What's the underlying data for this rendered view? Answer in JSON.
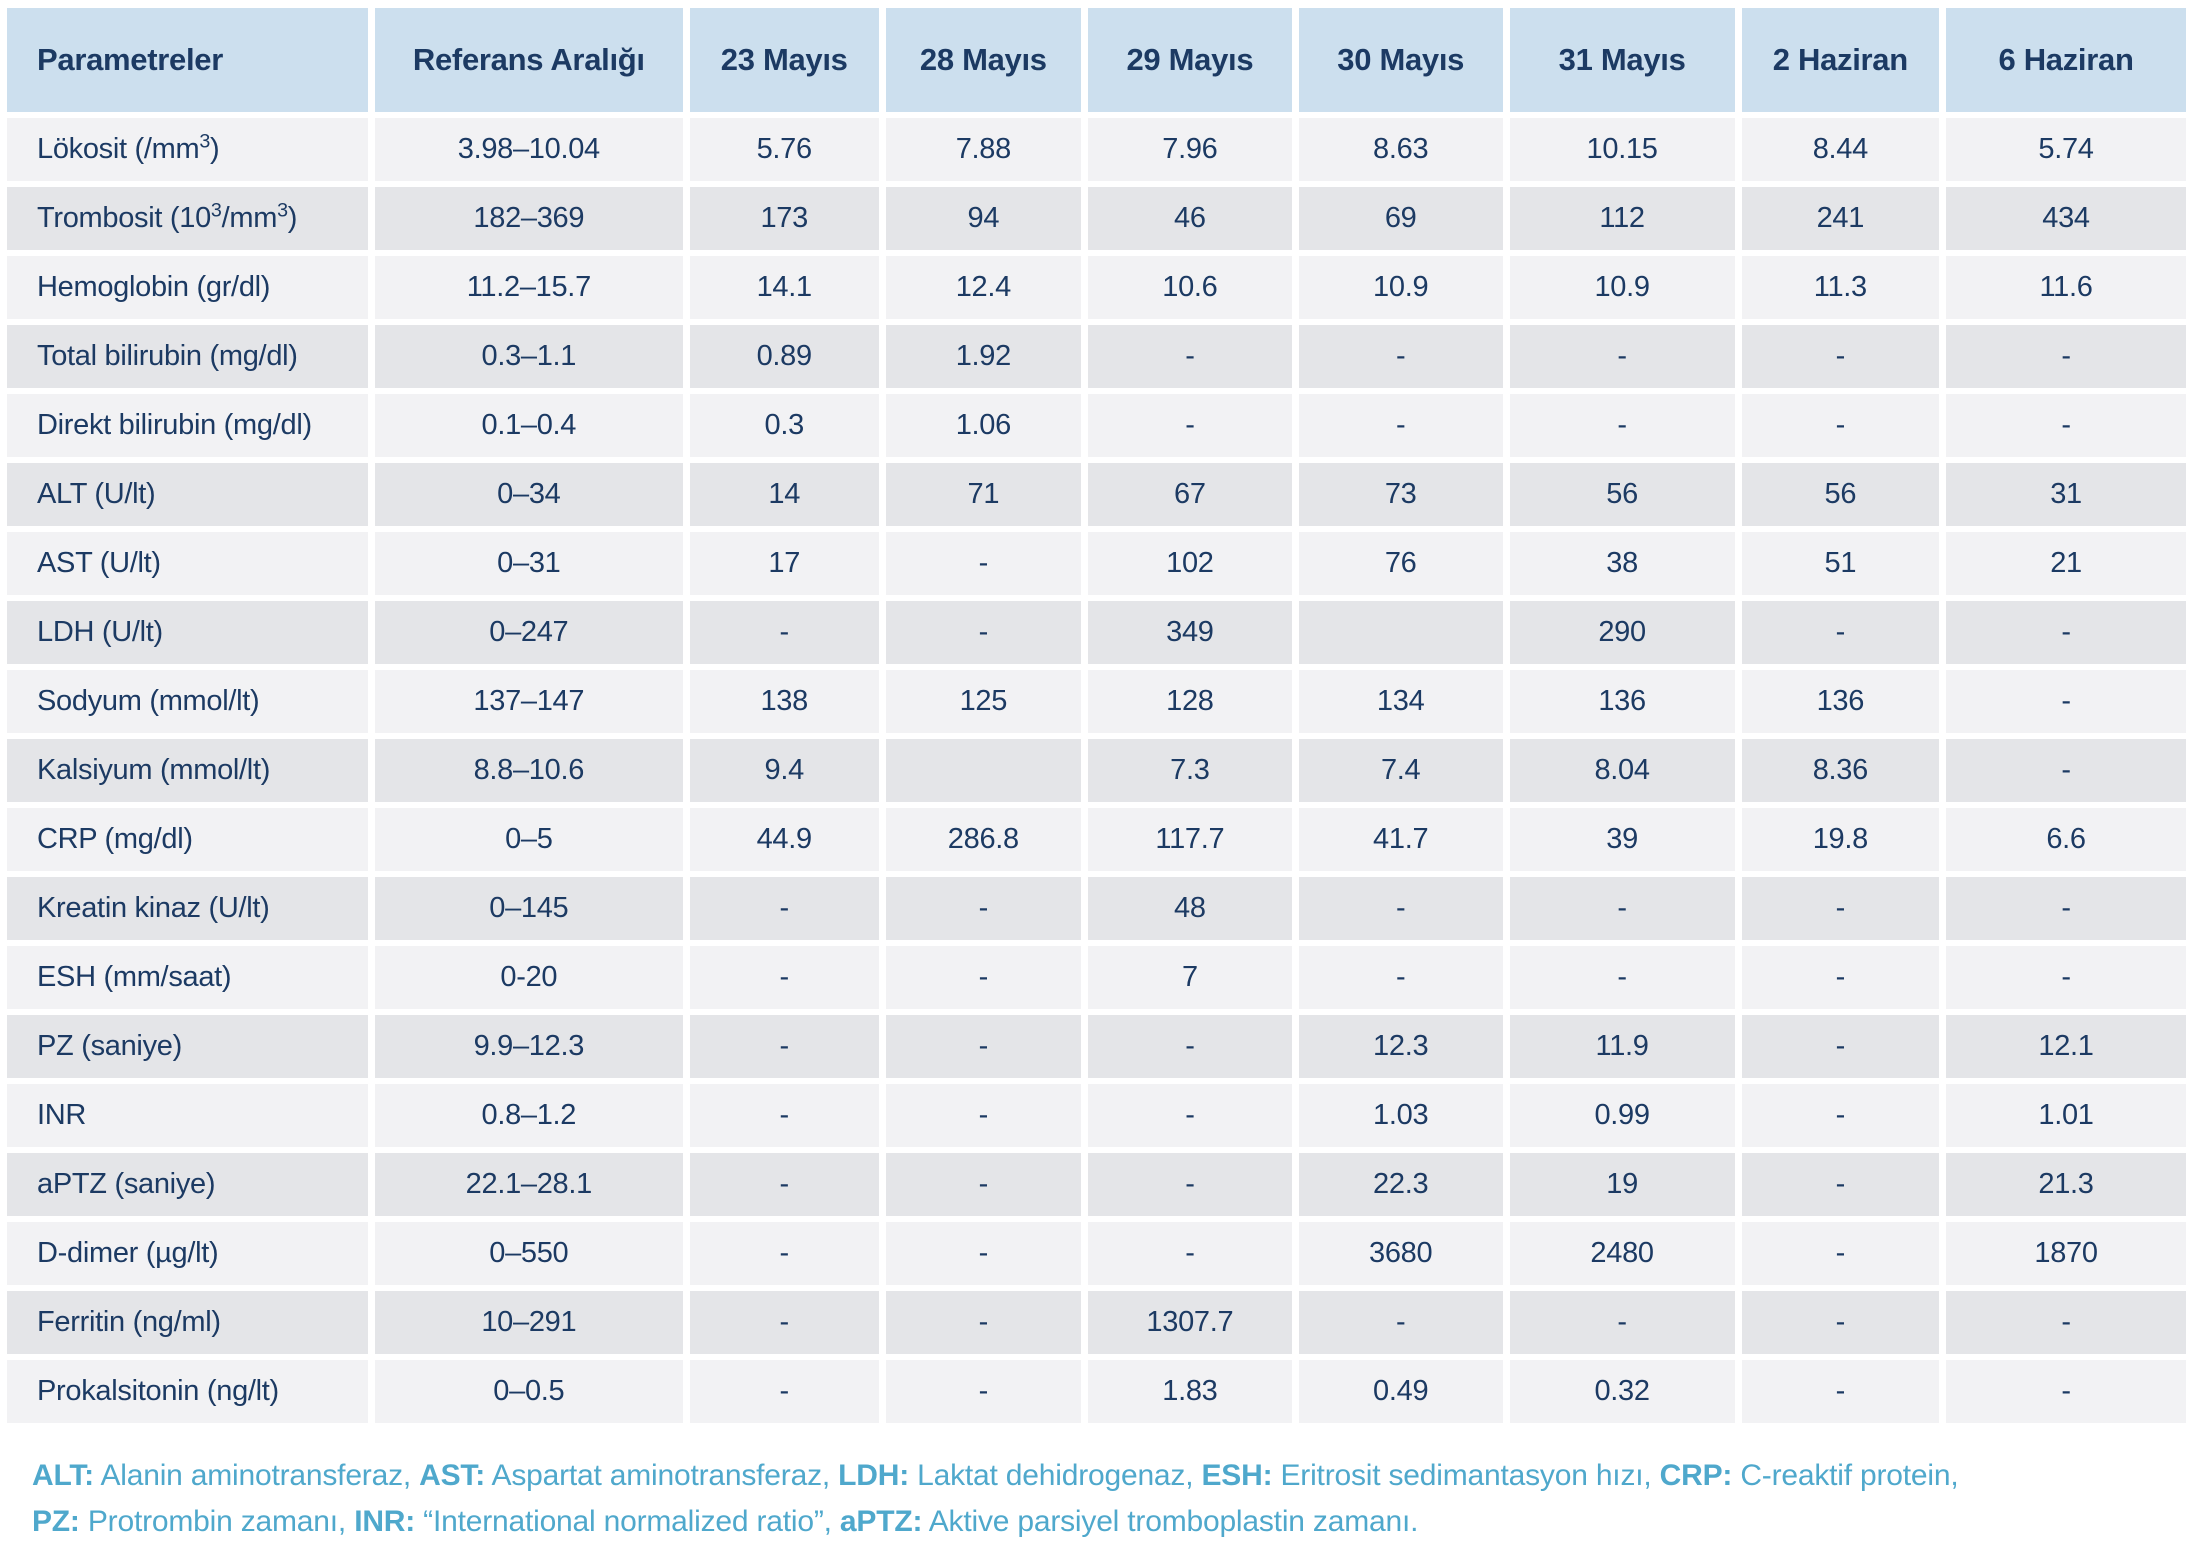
{
  "table": {
    "columns": [
      "Parametreler",
      "Referans Aralığı",
      "23 Mayıs",
      "28 Mayıs",
      "29 Mayıs",
      "30 Mayıs",
      "31 Mayıs",
      "2 Haziran",
      "6 Haziran"
    ],
    "rows": [
      {
        "cells": [
          "Lökosit (/mm³)",
          "3.98–10.04",
          "5.76",
          "7.88",
          "7.96",
          "8.63",
          "10.15",
          "8.44",
          "5.74"
        ]
      },
      {
        "cells": [
          "Trombosit (10³/mm³)",
          "182–369",
          "173",
          "94",
          "46",
          "69",
          "112",
          "241",
          "434"
        ]
      },
      {
        "cells": [
          "Hemoglobin (gr/dl)",
          "11.2–15.7",
          "14.1",
          "12.4",
          "10.6",
          "10.9",
          "10.9",
          "11.3",
          "11.6"
        ]
      },
      {
        "cells": [
          "Total bilirubin (mg/dl)",
          "0.3–1.1",
          "0.89",
          "1.92",
          "-",
          "-",
          "-",
          "-",
          "-"
        ]
      },
      {
        "cells": [
          "Direkt bilirubin (mg/dl)",
          "0.1–0.4",
          "0.3",
          "1.06",
          "-",
          "-",
          "-",
          "-",
          "-"
        ]
      },
      {
        "cells": [
          "ALT (U/lt)",
          "0–34",
          "14",
          "71",
          "67",
          "73",
          "56",
          "56",
          "31"
        ]
      },
      {
        "cells": [
          "AST (U/lt)",
          "0–31",
          "17",
          "-",
          "102",
          "76",
          "38",
          "51",
          "21"
        ]
      },
      {
        "cells": [
          "LDH (U/lt)",
          "0–247",
          "-",
          "-",
          "349",
          "",
          "290",
          "-",
          "-"
        ]
      },
      {
        "cells": [
          "Sodyum (mmol/lt)",
          "137–147",
          "138",
          "125",
          "128",
          "134",
          "136",
          "136",
          "-"
        ]
      },
      {
        "cells": [
          "Kalsiyum (mmol/lt)",
          "8.8–10.6",
          "9.4",
          "",
          "7.3",
          "7.4",
          "8.04",
          "8.36",
          "-"
        ]
      },
      {
        "cells": [
          "CRP (mg/dl)",
          "0–5",
          "44.9",
          "286.8",
          "117.7",
          "41.7",
          "39",
          "19.8",
          "6.6"
        ]
      },
      {
        "cells": [
          "Kreatin kinaz (U/lt)",
          "0–145",
          "-",
          "-",
          "48",
          "-",
          "-",
          "-",
          "-"
        ]
      },
      {
        "cells": [
          "ESH (mm/saat)",
          "0-20",
          "-",
          "-",
          "7",
          "-",
          "-",
          "-",
          "-"
        ]
      },
      {
        "cells": [
          "PZ (saniye)",
          "9.9–12.3",
          "-",
          "-",
          "-",
          "12.3",
          "11.9",
          "-",
          "12.1"
        ]
      },
      {
        "cells": [
          "INR",
          "0.8–1.2",
          "-",
          "-",
          "-",
          "1.03",
          "0.99",
          "-",
          "1.01"
        ]
      },
      {
        "cells": [
          "aPTZ (saniye)",
          "22.1–28.1",
          "-",
          "-",
          "-",
          "22.3",
          "19",
          "-",
          "21.3"
        ]
      },
      {
        "cells": [
          "D-dimer (µg/lt)",
          "0–550",
          "-",
          "-",
          "-",
          "3680",
          "2480",
          "-",
          "1870"
        ]
      },
      {
        "cells": [
          "Ferritin (ng/ml)",
          "10–291",
          "-",
          "-",
          "1307.7",
          "-",
          "-",
          "-",
          "-"
        ]
      },
      {
        "cells": [
          "Prokalsitonin (ng/lt)",
          "0–0.5",
          "-",
          "-",
          "1.83",
          "0.49",
          "0.32",
          "-",
          "-"
        ]
      }
    ]
  },
  "footnote": {
    "lines": [
      {
        "segments": [
          {
            "abbr": "ALT:",
            "text": " Alanin aminotransferaz, "
          },
          {
            "abbr": "AST:",
            "text": " Aspartat aminotransferaz, "
          },
          {
            "abbr": "LDH:",
            "text": " Laktat dehidrogenaz, "
          },
          {
            "abbr": "ESH:",
            "text": " Eritrosit sedimantasyon hızı, "
          },
          {
            "abbr": "CRP:",
            "text": " C-reaktif protein,"
          }
        ]
      },
      {
        "segments": [
          {
            "abbr": "PZ:",
            "text": " Protrombin zamanı, "
          },
          {
            "abbr": "INR:",
            "text": " “International normalized ratio”, "
          },
          {
            "abbr": "aPTZ:",
            "text": " Aktive parsiyel tromboplastin zamanı."
          }
        ]
      }
    ]
  },
  "theme": {
    "header_bg": "#ccdfee",
    "row_light": "#f2f2f4",
    "row_dark": "#e4e5e8",
    "text_navy": "#1c3a63",
    "footnote_blue": "#4fa8cc"
  }
}
